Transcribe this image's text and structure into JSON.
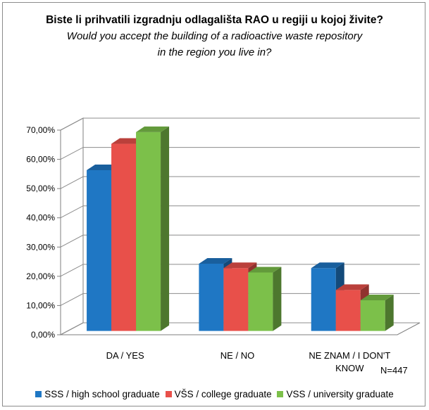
{
  "chart_data": {
    "type": "bar",
    "title": "Biste li prihvatili izgradnju odlagališta RAO u regiji u kojoj živite?",
    "subtitle": "Would you accept the building of a radioactive waste repository in the region you live in?",
    "categories": [
      "DA / YES",
      "NE / NO",
      "NE ZNAM / I DON'T KNOW"
    ],
    "series": [
      {
        "name": "SSS / high school graduate",
        "color": "#1f77c4",
        "values": [
          0.55,
          0.23,
          0.215
        ]
      },
      {
        "name": "VŠS / college graduate",
        "color": "#e8504a",
        "values": [
          0.64,
          0.215,
          0.14
        ]
      },
      {
        "name": "VSS / university graduate",
        "color": "#7cc04a",
        "values": [
          0.68,
          0.2,
          0.105
        ]
      }
    ],
    "yticks": [
      "0,00%",
      "10,00%",
      "20,00%",
      "30,00%",
      "40,00%",
      "50,00%",
      "60,00%",
      "70,00%"
    ],
    "ylim": [
      0,
      0.7
    ],
    "grid": true,
    "legend_position": "bottom",
    "annotation": "N=447"
  }
}
